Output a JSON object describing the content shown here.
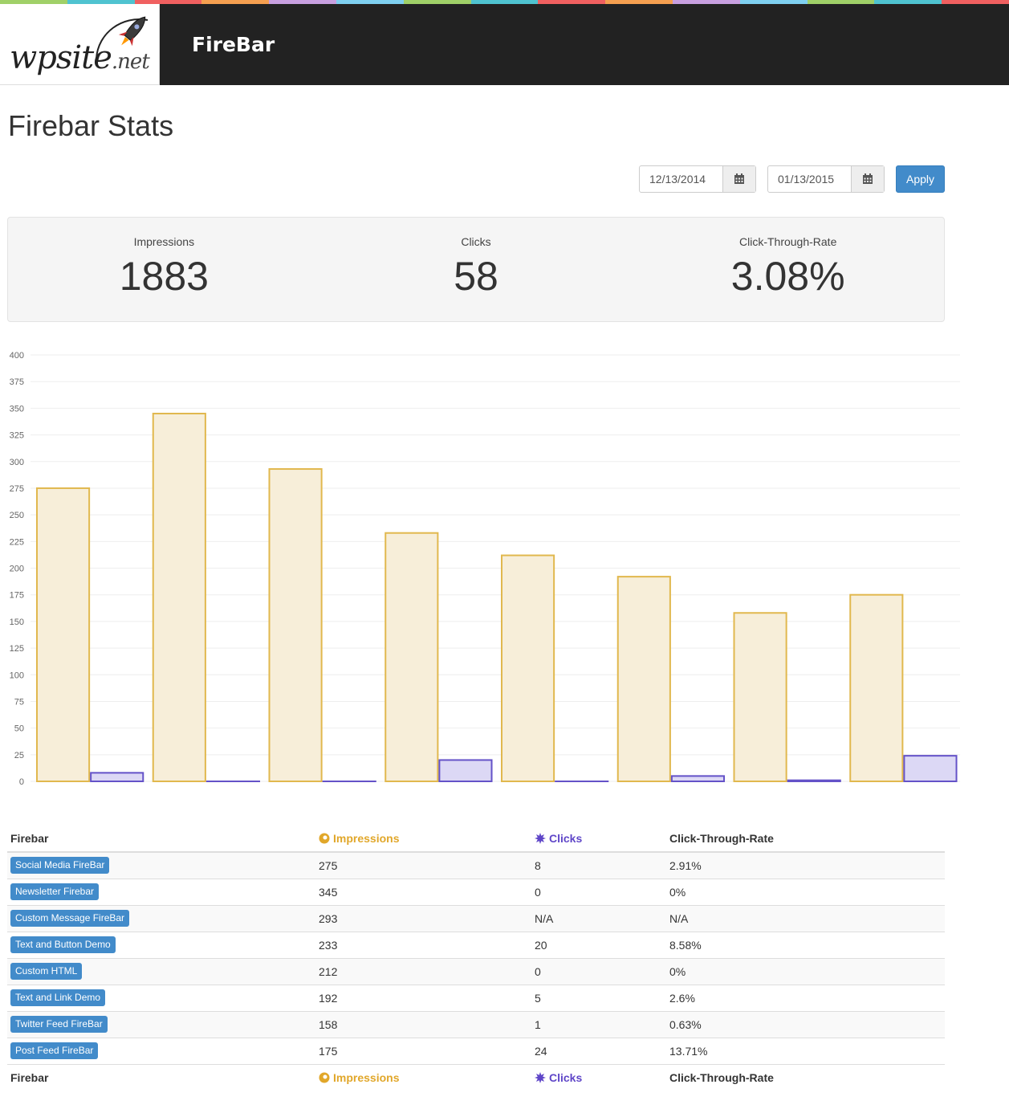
{
  "header": {
    "logo_text": "wpsite",
    "logo_suffix": ".net",
    "title": "FireBar",
    "stripe_colors": [
      "#a0d068",
      "#4fc3d0",
      "#f06060",
      "#f5a050",
      "#c8a0e0",
      "#7fd0f0",
      "#a0d068",
      "#4fc3d0",
      "#f06060",
      "#f5a050",
      "#c8a0e0",
      "#7fd0f0",
      "#a0d068",
      "#4fc3d0",
      "#f06060"
    ]
  },
  "page": {
    "title": "Firebar Stats"
  },
  "filters": {
    "start_date": "12/13/2014",
    "end_date": "01/13/2015",
    "apply_label": "Apply"
  },
  "summary": {
    "impressions_label": "Impressions",
    "impressions_value": "1883",
    "clicks_label": "Clicks",
    "clicks_value": "58",
    "ctr_label": "Click-Through-Rate",
    "ctr_value": "3.08%"
  },
  "chart_data": {
    "type": "bar",
    "categories": [
      "Social Media FireBar",
      "Newsletter Firebar",
      "Custom Message FireBar",
      "Text and Button Demo",
      "Custom HTML",
      "Text and Link Demo",
      "Twitter Feed FireBar",
      "Post Feed FireBar"
    ],
    "series": [
      {
        "values": [
          275,
          345,
          293,
          233,
          212,
          192,
          158,
          175
        ],
        "color": "#e1b84e",
        "fill": "#f7eed9"
      },
      {
        "values": [
          8,
          0,
          0,
          20,
          0,
          5,
          1,
          24
        ],
        "color": "#6452c8",
        "fill": "#dcd8f5"
      }
    ],
    "ylim": [
      0,
      400
    ],
    "yticks": [
      0,
      25,
      50,
      75,
      100,
      125,
      150,
      175,
      200,
      225,
      250,
      275,
      300,
      325,
      350,
      375,
      400
    ],
    "grid": true
  },
  "table": {
    "headers": {
      "firebar": "Firebar",
      "impressions": "Impressions",
      "clicks": "Clicks",
      "ctr": "Click-Through-Rate"
    },
    "rows": [
      {
        "name": "Social Media FireBar",
        "impressions": "275",
        "clicks": "8",
        "ctr": "2.91%"
      },
      {
        "name": "Newsletter Firebar",
        "impressions": "345",
        "clicks": "0",
        "ctr": "0%"
      },
      {
        "name": "Custom Message FireBar",
        "impressions": "293",
        "clicks": "N/A",
        "ctr": "N/A"
      },
      {
        "name": "Text and Button Demo",
        "impressions": "233",
        "clicks": "20",
        "ctr": "8.58%"
      },
      {
        "name": "Custom HTML",
        "impressions": "212",
        "clicks": "0",
        "ctr": "0%"
      },
      {
        "name": "Text and Link Demo",
        "impressions": "192",
        "clicks": "5",
        "ctr": "2.6%"
      },
      {
        "name": "Twitter Feed FireBar",
        "impressions": "158",
        "clicks": "1",
        "ctr": "0.63%"
      },
      {
        "name": "Post Feed FireBar",
        "impressions": "175",
        "clicks": "24",
        "ctr": "13.71%"
      }
    ]
  },
  "icons": {
    "calendar": "calendar-icon",
    "impressions": "eye-icon",
    "clicks": "burst-icon",
    "rocket": "rocket-icon"
  }
}
